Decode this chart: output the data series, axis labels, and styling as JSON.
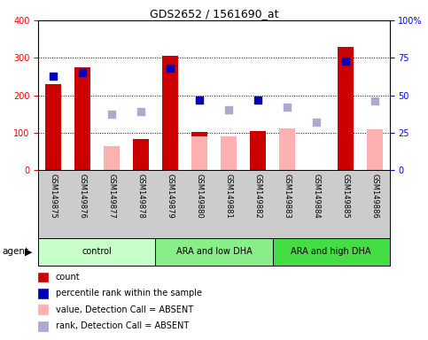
{
  "title": "GDS2652 / 1561690_at",
  "categories": [
    "GSM149875",
    "GSM149876",
    "GSM149877",
    "GSM149878",
    "GSM149879",
    "GSM149880",
    "GSM149881",
    "GSM149882",
    "GSM149883",
    "GSM149884",
    "GSM149885",
    "GSM149886"
  ],
  "red_bars": [
    230,
    275,
    null,
    82,
    305,
    102,
    null,
    105,
    null,
    null,
    330,
    null
  ],
  "pink_bars": [
    null,
    null,
    65,
    null,
    null,
    90,
    90,
    null,
    112,
    null,
    null,
    108
  ],
  "blue_squares_pct": [
    63,
    65,
    null,
    null,
    68,
    47,
    null,
    47,
    null,
    null,
    73,
    null
  ],
  "purple_squares_pct": [
    null,
    null,
    37,
    39,
    null,
    null,
    40,
    null,
    42,
    32,
    null,
    46
  ],
  "ylim_left": [
    0,
    400
  ],
  "ylim_right": [
    0,
    100
  ],
  "yticks_left": [
    0,
    100,
    200,
    300,
    400
  ],
  "yticks_right": [
    0,
    25,
    50,
    75,
    100
  ],
  "yticklabels_right": [
    "0",
    "25",
    "50",
    "75",
    "100%"
  ],
  "groups": [
    {
      "label": "control",
      "start": 0,
      "end": 3,
      "color": "#c8ffc8"
    },
    {
      "label": "ARA and low DHA",
      "start": 4,
      "end": 7,
      "color": "#88ee88"
    },
    {
      "label": "ARA and high DHA",
      "start": 8,
      "end": 11,
      "color": "#44dd44"
    }
  ],
  "agent_label": "agent",
  "bar_width": 0.55,
  "red_color": "#cc0000",
  "pink_color": "#ffb0b0",
  "blue_color": "#0000bb",
  "purple_color": "#aaaacc",
  "bg_color": "#ffffff",
  "tick_area_color": "#cccccc",
  "legend_items": [
    {
      "color": "#cc0000",
      "label": "count"
    },
    {
      "color": "#0000bb",
      "label": "percentile rank within the sample"
    },
    {
      "color": "#ffb0b0",
      "label": "value, Detection Call = ABSENT"
    },
    {
      "color": "#aaaacc",
      "label": "rank, Detection Call = ABSENT"
    }
  ]
}
